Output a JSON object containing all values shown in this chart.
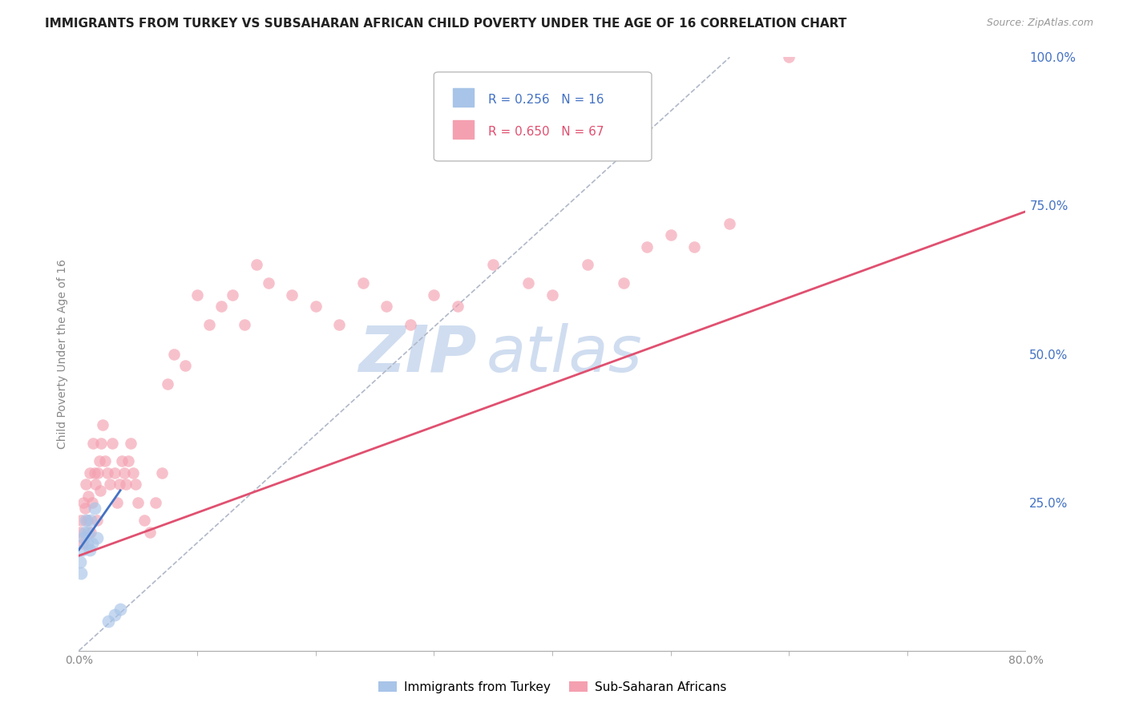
{
  "title": "IMMIGRANTS FROM TURKEY VS SUBSAHARAN AFRICAN CHILD POVERTY UNDER THE AGE OF 16 CORRELATION CHART",
  "source": "Source: ZipAtlas.com",
  "ylabel": "Child Poverty Under the Age of 16",
  "right_yticks": [
    "100.0%",
    "75.0%",
    "50.0%",
    "25.0%"
  ],
  "right_ytick_vals": [
    1.0,
    0.75,
    0.5,
    0.25
  ],
  "legend1_label": "Immigrants from Turkey",
  "legend2_label": "Sub-Saharan Africans",
  "R1": 0.256,
  "N1": 16,
  "R2": 0.65,
  "N2": 67,
  "color_turkey": "#a8c4e8",
  "color_africa": "#f4a0b0",
  "color_turkey_line": "#4472c4",
  "color_africa_line": "#e05070",
  "color_diag_line": "#b0b8c8",
  "color_right_axis": "#4472c4",
  "watermark_color": "#d0ddf0",
  "background_color": "#ffffff",
  "grid_color": "#e0e0e0",
  "turkey_x": [
    0.001,
    0.002,
    0.003,
    0.004,
    0.005,
    0.006,
    0.007,
    0.008,
    0.009,
    0.01,
    0.011,
    0.013,
    0.015,
    0.025,
    0.03,
    0.035
  ],
  "turkey_y": [
    0.15,
    0.13,
    0.17,
    0.19,
    0.2,
    0.22,
    0.18,
    0.2,
    0.17,
    0.22,
    0.18,
    0.24,
    0.19,
    0.05,
    0.06,
    0.07
  ],
  "africa_x": [
    0.001,
    0.002,
    0.003,
    0.004,
    0.005,
    0.006,
    0.007,
    0.008,
    0.009,
    0.01,
    0.011,
    0.012,
    0.013,
    0.014,
    0.015,
    0.016,
    0.017,
    0.018,
    0.019,
    0.02,
    0.022,
    0.024,
    0.026,
    0.028,
    0.03,
    0.032,
    0.034,
    0.036,
    0.038,
    0.04,
    0.042,
    0.044,
    0.046,
    0.048,
    0.05,
    0.055,
    0.06,
    0.065,
    0.07,
    0.075,
    0.08,
    0.09,
    0.1,
    0.11,
    0.12,
    0.13,
    0.14,
    0.15,
    0.16,
    0.18,
    0.2,
    0.22,
    0.24,
    0.26,
    0.28,
    0.3,
    0.32,
    0.35,
    0.38,
    0.4,
    0.43,
    0.46,
    0.48,
    0.5,
    0.52,
    0.55,
    0.6
  ],
  "africa_y": [
    0.2,
    0.22,
    0.18,
    0.25,
    0.24,
    0.28,
    0.22,
    0.26,
    0.3,
    0.2,
    0.25,
    0.35,
    0.3,
    0.28,
    0.22,
    0.3,
    0.32,
    0.27,
    0.35,
    0.38,
    0.32,
    0.3,
    0.28,
    0.35,
    0.3,
    0.25,
    0.28,
    0.32,
    0.3,
    0.28,
    0.32,
    0.35,
    0.3,
    0.28,
    0.25,
    0.22,
    0.2,
    0.25,
    0.3,
    0.45,
    0.5,
    0.48,
    0.6,
    0.55,
    0.58,
    0.6,
    0.55,
    0.65,
    0.62,
    0.6,
    0.58,
    0.55,
    0.62,
    0.58,
    0.55,
    0.6,
    0.58,
    0.65,
    0.62,
    0.6,
    0.65,
    0.62,
    0.68,
    0.7,
    0.68,
    0.72,
    1.0
  ],
  "xlim": [
    0.0,
    0.8
  ],
  "ylim": [
    0.0,
    1.0
  ],
  "marker_size_turkey": 130,
  "marker_size_africa": 110,
  "turkey_line_x": [
    0.0,
    0.035
  ],
  "turkey_line_y": [
    0.17,
    0.27
  ],
  "africa_line_x": [
    0.0,
    0.8
  ],
  "africa_line_y": [
    0.16,
    0.74
  ],
  "diag_line_x": [
    0.0,
    0.55
  ],
  "diag_line_y": [
    0.0,
    1.0
  ]
}
